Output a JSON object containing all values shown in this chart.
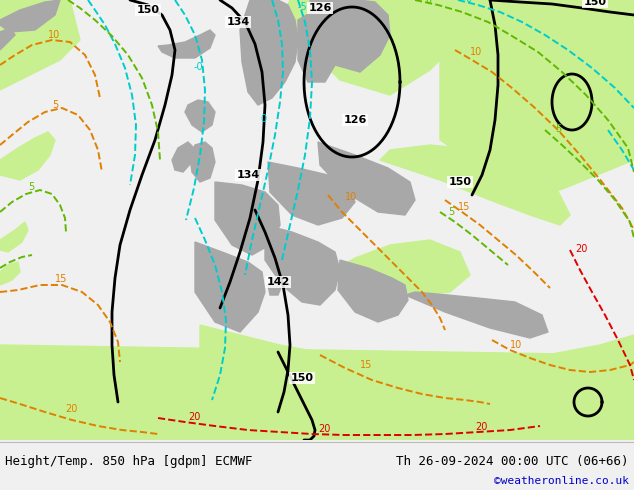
{
  "title_left": "Height/Temp. 850 hPa [gdpm] ECMWF",
  "title_right": "Th 26-09-2024 00:00 UTC (06+66)",
  "credit": "©weatheronline.co.uk",
  "ocean_color": "#d0d0d0",
  "land_green_color": "#c8f090",
  "land_gray_color": "#a8a8a8",
  "bottom_bg": "#f0f0f0",
  "black_color": "#000000",
  "cyan_color": "#00cccc",
  "orange_color": "#e08000",
  "red_color": "#dd0000",
  "green_color": "#60b800",
  "blue_color": "#0050ff",
  "black_lw": 2.0,
  "iso_lw": 1.4,
  "title_fontsize": 9,
  "credit_color": "#0000cc",
  "credit_fontsize": 8,
  "figw": 6.34,
  "figh": 4.9,
  "dpi": 100
}
